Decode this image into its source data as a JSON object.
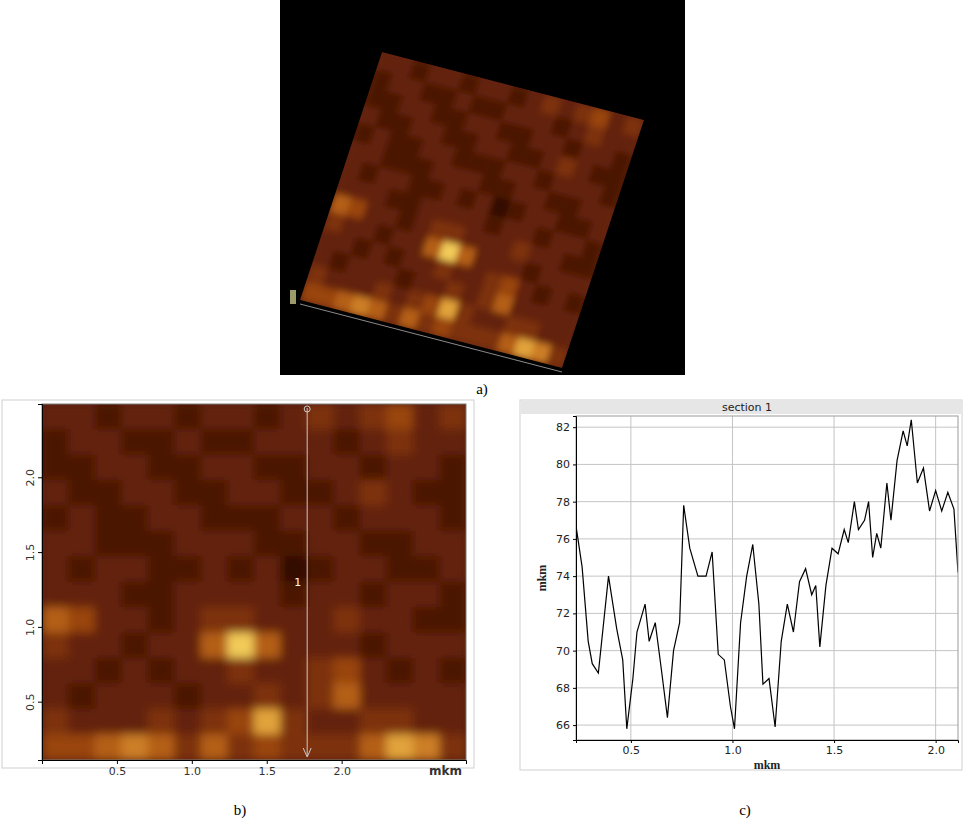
{
  "chart_data": [
    {
      "type": "surface",
      "panel": "a)"
    },
    {
      "type": "heatmap",
      "panel": "b)",
      "x_label": "mkm",
      "x": [
        0.089,
        0.266,
        0.443,
        0.62,
        0.797,
        0.974,
        1.151,
        1.328,
        1.505,
        1.682,
        1.859,
        2.036,
        2.213,
        2.39,
        2.567,
        2.744
      ],
      "y": [
        2.405,
        2.235,
        2.065,
        1.895,
        1.725,
        1.555,
        1.385,
        1.215,
        1.045,
        0.875,
        0.705,
        0.535,
        0.365,
        0.195
      ],
      "z": [
        [
          3,
          3,
          2,
          3,
          3,
          2,
          3,
          3,
          2,
          3,
          4,
          3,
          4,
          5,
          3,
          4
        ],
        [
          2,
          3,
          3,
          2,
          2,
          3,
          2,
          2,
          3,
          3,
          3,
          2,
          3,
          4,
          3,
          3
        ],
        [
          2,
          2,
          3,
          3,
          2,
          2,
          3,
          3,
          2,
          2,
          3,
          3,
          2,
          3,
          3,
          2
        ],
        [
          3,
          2,
          2,
          3,
          3,
          2,
          2,
          3,
          3,
          2,
          2,
          3,
          4,
          3,
          2,
          2
        ],
        [
          2,
          3,
          2,
          2,
          3,
          3,
          2,
          2,
          2,
          3,
          3,
          2,
          3,
          3,
          3,
          2
        ],
        [
          3,
          3,
          2,
          2,
          2,
          3,
          3,
          3,
          2,
          2,
          3,
          3,
          2,
          2,
          3,
          3
        ],
        [
          3,
          2,
          3,
          3,
          2,
          2,
          3,
          2,
          3,
          1,
          2,
          3,
          3,
          2,
          2,
          3
        ],
        [
          3,
          3,
          3,
          2,
          2,
          3,
          3,
          3,
          3,
          2,
          3,
          3,
          2,
          3,
          3,
          2
        ],
        [
          6,
          5,
          3,
          3,
          2,
          3,
          4,
          4,
          3,
          3,
          3,
          4,
          3,
          3,
          2,
          2
        ],
        [
          4,
          3,
          3,
          2,
          3,
          3,
          6,
          9,
          6,
          3,
          3,
          3,
          2,
          3,
          3,
          3
        ],
        [
          3,
          3,
          2,
          3,
          2,
          3,
          3,
          4,
          3,
          3,
          4,
          5,
          3,
          2,
          3,
          2
        ],
        [
          3,
          2,
          3,
          3,
          3,
          2,
          3,
          3,
          4,
          3,
          4,
          6,
          3,
          3,
          3,
          3
        ],
        [
          4,
          3,
          3,
          3,
          4,
          3,
          4,
          5,
          8,
          4,
          3,
          3,
          4,
          4,
          3,
          3
        ],
        [
          5,
          5,
          6,
          7,
          6,
          4,
          6,
          4,
          5,
          4,
          4,
          4,
          6,
          8,
          7,
          4
        ]
      ],
      "zlim": [
        0,
        10
      ],
      "xlim": [
        0,
        2.83
      ],
      "ylim": [
        0.11,
        2.49
      ],
      "xticks": [
        0.5,
        {
          "value": 1,
          "label": "1.0"
        },
        1.5,
        {
          "value": 2,
          "label": "2.0"
        }
      ],
      "yticks": [
        0.5,
        {
          "value": 1,
          "label": "1.0"
        },
        1.5,
        {
          "value": 2,
          "label": "2.0"
        }
      ],
      "section_x": 1.77,
      "section_label": "1"
    },
    {
      "type": "line",
      "panel": "c)",
      "title": "section 1",
      "x_label": "mkm",
      "y_label": "mkm",
      "x": [
        0.23,
        0.26,
        0.29,
        0.31,
        0.34,
        0.39,
        0.43,
        0.46,
        0.48,
        0.51,
        0.53,
        0.57,
        0.59,
        0.62,
        0.65,
        0.68,
        0.71,
        0.74,
        0.76,
        0.79,
        0.83,
        0.87,
        0.9,
        0.93,
        0.96,
        0.99,
        1.01,
        1.04,
        1.07,
        1.1,
        1.13,
        1.15,
        1.18,
        1.21,
        1.24,
        1.27,
        1.3,
        1.33,
        1.36,
        1.39,
        1.41,
        1.43,
        1.46,
        1.49,
        1.52,
        1.55,
        1.57,
        1.6,
        1.62,
        1.65,
        1.67,
        1.69,
        1.71,
        1.73,
        1.76,
        1.78,
        1.81,
        1.84,
        1.86,
        1.88,
        1.91,
        1.94,
        1.97,
        2.0,
        2.03,
        2.06,
        2.09,
        2.11
      ],
      "values": [
        76.7,
        74.5,
        70.5,
        69.3,
        68.8,
        74.0,
        71.2,
        69.5,
        65.8,
        68.5,
        71.0,
        72.5,
        70.5,
        71.5,
        69.0,
        66.4,
        70.0,
        71.5,
        77.8,
        75.5,
        74.0,
        74.0,
        75.3,
        69.8,
        69.5,
        67.0,
        65.8,
        71.5,
        74.0,
        75.7,
        72.5,
        68.2,
        68.5,
        65.9,
        70.5,
        72.5,
        71.0,
        73.7,
        74.4,
        73.0,
        73.5,
        70.2,
        73.5,
        75.5,
        75.2,
        76.5,
        75.8,
        78.0,
        76.5,
        77.0,
        78.0,
        75.0,
        76.3,
        75.5,
        79.0,
        77.0,
        80.2,
        81.8,
        81.0,
        82.4,
        79.0,
        79.8,
        77.5,
        78.6,
        77.5,
        78.5,
        77.6,
        74.2
      ],
      "color": "#000000",
      "xlim": [
        0.23,
        2.11
      ],
      "ylim": [
        65.2,
        82.6
      ],
      "xticks": [
        0.5,
        {
          "value": 1,
          "label": "1.0"
        },
        1.5,
        {
          "value": 2,
          "label": "2.0"
        }
      ],
      "yticks": [
        66,
        68,
        70,
        72,
        74,
        76,
        78,
        80,
        82
      ],
      "grid": true
    }
  ]
}
